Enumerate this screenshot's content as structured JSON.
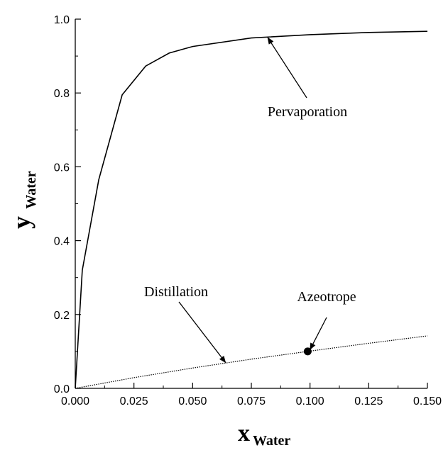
{
  "chart_data": {
    "type": "line",
    "title": "",
    "xlabel": "x",
    "xlabel_sub": "Water",
    "ylabel": "y",
    "ylabel_sub": "Water",
    "xlim": [
      0,
      0.15
    ],
    "ylim": [
      0,
      1.0
    ],
    "x_ticks": [
      "0.000",
      "0.025",
      "0.050",
      "0.075",
      "0.100",
      "0.125",
      "0.150"
    ],
    "y_ticks": [
      "0.0",
      "0.2",
      "0.4",
      "0.6",
      "0.8",
      "1.0"
    ],
    "grid": false,
    "series": [
      {
        "style": "solid",
        "x": [
          0,
          0.003,
          0.01,
          0.02,
          0.03,
          0.04,
          0.05,
          0.075,
          0.1,
          0.125,
          0.15
        ],
        "y": [
          0,
          0.32,
          0.565,
          0.795,
          0.873,
          0.908,
          0.926,
          0.949,
          0.958,
          0.964,
          0.967
        ]
      },
      {
        "style": "dotted",
        "x": [
          0,
          0.025,
          0.05,
          0.075,
          0.1,
          0.125,
          0.15
        ],
        "y": [
          0,
          0.029,
          0.055,
          0.079,
          0.101,
          0.122,
          0.142
        ]
      }
    ],
    "points": [
      {
        "x": 0.099,
        "y": 0.1
      }
    ],
    "annotations": [
      {
        "text": "Pervaporation",
        "target": [
          0.082,
          0.95
        ]
      },
      {
        "text": "Distillation",
        "target": [
          0.064,
          0.07
        ]
      },
      {
        "text": "Azeotrope",
        "target": [
          0.1,
          0.105
        ]
      }
    ],
    "colors": {
      "line": "#000000",
      "background": "#ffffff"
    }
  }
}
